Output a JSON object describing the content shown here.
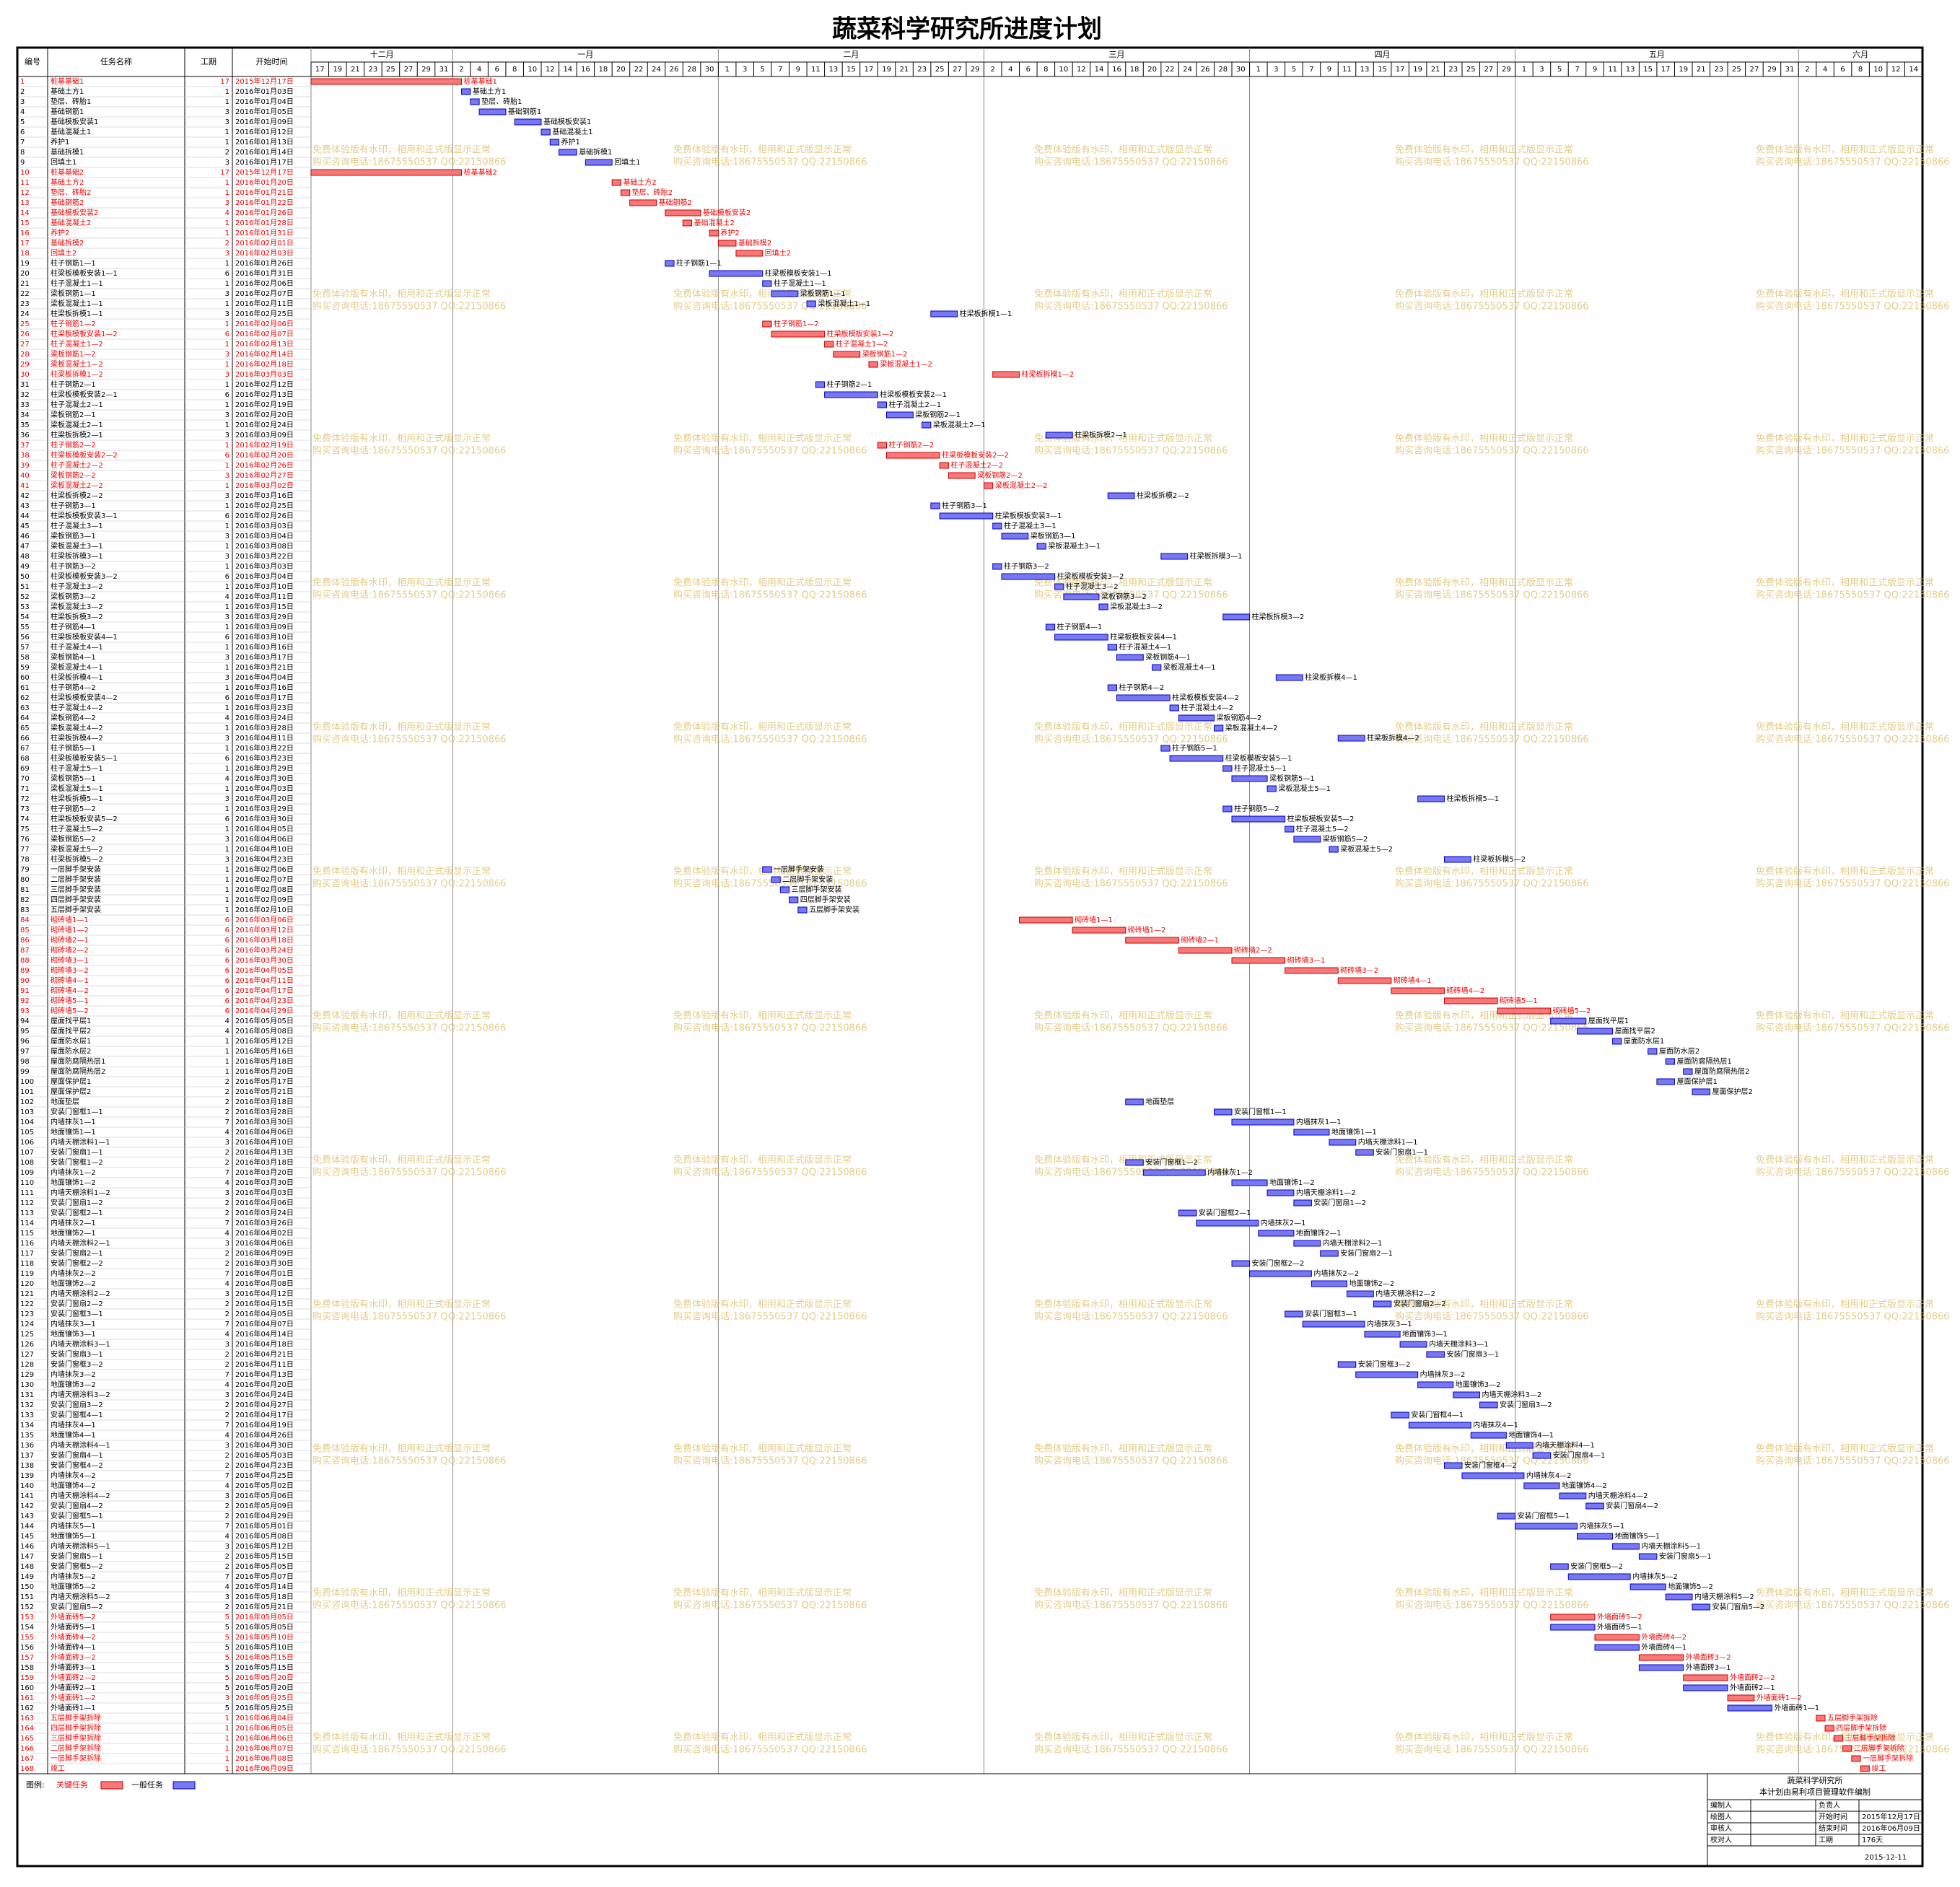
{
  "title": "蔬菜科学研究所进度计划",
  "table": {
    "headers": [
      "编号",
      "任务名称",
      "工期",
      "开始时间"
    ],
    "tasks": [
      [
        1,
        "桩基基础1",
        17,
        "2015年12月17日",
        true
      ],
      [
        2,
        "基础土方1",
        1,
        "2016年01月03日",
        false
      ],
      [
        3,
        "垫层、砖胎1",
        1,
        "2016年01月04日",
        false
      ],
      [
        4,
        "基础钢筋1",
        3,
        "2016年01月05日",
        false
      ],
      [
        5,
        "基础模板安装1",
        3,
        "2016年01月09日",
        false
      ],
      [
        6,
        "基础混凝土1",
        1,
        "2016年01月12日",
        false
      ],
      [
        7,
        "养护1",
        1,
        "2016年01月13日",
        false
      ],
      [
        8,
        "基础拆模1",
        2,
        "2016年01月14日",
        false
      ],
      [
        9,
        "回填土1",
        3,
        "2016年01月17日",
        false
      ],
      [
        10,
        "桩基基础2",
        17,
        "2015年12月17日",
        true
      ],
      [
        11,
        "基础土方2",
        1,
        "2016年01月20日",
        true
      ],
      [
        12,
        "垫层、砖胎2",
        1,
        "2016年01月21日",
        true
      ],
      [
        13,
        "基础钢筋2",
        3,
        "2016年01月22日",
        true
      ],
      [
        14,
        "基础模板安装2",
        4,
        "2016年01月26日",
        true
      ],
      [
        15,
        "基础混凝土2",
        1,
        "2016年01月28日",
        true
      ],
      [
        16,
        "养护2",
        1,
        "2016年01月31日",
        true
      ],
      [
        17,
        "基础拆模2",
        2,
        "2016年02月01日",
        true
      ],
      [
        18,
        "回填土2",
        3,
        "2016年02月03日",
        true
      ],
      [
        19,
        "柱子钢筋1—1",
        1,
        "2016年01月26日",
        false
      ],
      [
        20,
        "柱梁板模板安装1—1",
        6,
        "2016年01月31日",
        false
      ],
      [
        21,
        "柱子混凝土1—1",
        1,
        "2016年02月06日",
        false
      ],
      [
        22,
        "梁板钢筋1—1",
        3,
        "2016年02月07日",
        false
      ],
      [
        23,
        "梁板混凝土1—1",
        1,
        "2016年02月11日",
        false
      ],
      [
        24,
        "柱梁板拆模1—1",
        3,
        "2016年02月25日",
        false
      ],
      [
        25,
        "柱子钢筋1—2",
        1,
        "2016年02月06日",
        true
      ],
      [
        26,
        "柱梁板模板安装1—2",
        6,
        "2016年02月07日",
        true
      ],
      [
        27,
        "柱子混凝土1—2",
        1,
        "2016年02月13日",
        true
      ],
      [
        28,
        "梁板钢筋1—2",
        3,
        "2016年02月14日",
        true
      ],
      [
        29,
        "梁板混凝土1—2",
        1,
        "2016年02月18日",
        true
      ],
      [
        30,
        "柱梁板拆模1—2",
        3,
        "2016年03月03日",
        true
      ],
      [
        31,
        "柱子钢筋2—1",
        1,
        "2016年02月12日",
        false
      ],
      [
        32,
        "柱梁板模板安装2—1",
        6,
        "2016年02月13日",
        false
      ],
      [
        33,
        "柱子混凝土2—1",
        1,
        "2016年02月19日",
        false
      ],
      [
        34,
        "梁板钢筋2—1",
        3,
        "2016年02月20日",
        false
      ],
      [
        35,
        "梁板混凝土2—1",
        1,
        "2016年02月24日",
        false
      ],
      [
        36,
        "柱梁板拆模2—1",
        3,
        "2016年03月09日",
        false
      ],
      [
        37,
        "柱子钢筋2—2",
        1,
        "2016年02月19日",
        true
      ],
      [
        38,
        "柱梁板模板安装2—2",
        6,
        "2016年02月20日",
        true
      ],
      [
        39,
        "柱子混凝土2—2",
        1,
        "2016年02月26日",
        true
      ],
      [
        40,
        "梁板钢筋2—2",
        3,
        "2016年02月27日",
        true
      ],
      [
        41,
        "梁板混凝土2—2",
        1,
        "2016年03月02日",
        true
      ],
      [
        42,
        "柱梁板拆模2—2",
        3,
        "2016年03月16日",
        false
      ],
      [
        43,
        "柱子钢筋3—1",
        1,
        "2016年02月25日",
        false
      ],
      [
        44,
        "柱梁板模板安装3—1",
        6,
        "2016年02月26日",
        false
      ],
      [
        45,
        "柱子混凝土3—1",
        1,
        "2016年03月03日",
        false
      ],
      [
        46,
        "梁板钢筋3—1",
        3,
        "2016年03月04日",
        false
      ],
      [
        47,
        "梁板混凝土3—1",
        1,
        "2016年03月08日",
        false
      ],
      [
        48,
        "柱梁板拆模3—1",
        3,
        "2016年03月22日",
        false
      ],
      [
        49,
        "柱子钢筋3—2",
        1,
        "2016年03月03日",
        false
      ],
      [
        50,
        "柱梁板模板安装3—2",
        6,
        "2016年03月04日",
        false
      ],
      [
        51,
        "柱子混凝土3—2",
        1,
        "2016年03月10日",
        false
      ],
      [
        52,
        "梁板钢筋3—2",
        4,
        "2016年03月11日",
        false
      ],
      [
        53,
        "梁板混凝土3—2",
        1,
        "2016年03月15日",
        false
      ],
      [
        54,
        "柱梁板拆模3—2",
        3,
        "2016年03月29日",
        false
      ],
      [
        55,
        "柱子钢筋4—1",
        1,
        "2016年03月09日",
        false
      ],
      [
        56,
        "柱梁板模板安装4—1",
        6,
        "2016年03月10日",
        false
      ],
      [
        57,
        "柱子混凝土4—1",
        1,
        "2016年03月16日",
        false
      ],
      [
        58,
        "梁板钢筋4—1",
        3,
        "2016年03月17日",
        false
      ],
      [
        59,
        "梁板混凝土4—1",
        1,
        "2016年03月21日",
        false
      ],
      [
        60,
        "柱梁板拆模4—1",
        3,
        "2016年04月04日",
        false
      ],
      [
        61,
        "柱子钢筋4—2",
        1,
        "2016年03月16日",
        false
      ],
      [
        62,
        "柱梁板模板安装4—2",
        6,
        "2016年03月17日",
        false
      ],
      [
        63,
        "柱子混凝土4—2",
        1,
        "2016年03月23日",
        false
      ],
      [
        64,
        "梁板钢筋4—2",
        4,
        "2016年03月24日",
        false
      ],
      [
        65,
        "梁板混凝土4—2",
        1,
        "2016年03月28日",
        false
      ],
      [
        66,
        "柱梁板拆模4—2",
        3,
        "2016年04月11日",
        false
      ],
      [
        67,
        "柱子钢筋5—1",
        1,
        "2016年03月22日",
        false
      ],
      [
        68,
        "柱梁板模板安装5—1",
        6,
        "2016年03月23日",
        false
      ],
      [
        69,
        "柱子混凝土5—1",
        1,
        "2016年03月29日",
        false
      ],
      [
        70,
        "梁板钢筋5—1",
        4,
        "2016年03月30日",
        false
      ],
      [
        71,
        "梁板混凝土5—1",
        1,
        "2016年04月03日",
        false
      ],
      [
        72,
        "柱梁板拆模5—1",
        3,
        "2016年04月20日",
        false
      ],
      [
        73,
        "柱子钢筋5—2",
        1,
        "2016年03月29日",
        false
      ],
      [
        74,
        "柱梁板模板安装5—2",
        6,
        "2016年03月30日",
        false
      ],
      [
        75,
        "柱子混凝土5—2",
        1,
        "2016年04月05日",
        false
      ],
      [
        76,
        "梁板钢筋5—2",
        3,
        "2016年04月06日",
        false
      ],
      [
        77,
        "梁板混凝土5—2",
        1,
        "2016年04月10日",
        false
      ],
      [
        78,
        "柱梁板拆模5—2",
        3,
        "2016年04月23日",
        false
      ],
      [
        79,
        "一层脚手架安装",
        1,
        "2016年02月06日",
        false
      ],
      [
        80,
        "二层脚手架安装",
        1,
        "2016年02月07日",
        false
      ],
      [
        81,
        "三层脚手架安装",
        1,
        "2016年02月08日",
        false
      ],
      [
        82,
        "四层脚手架安装",
        1,
        "2016年02月09日",
        false
      ],
      [
        83,
        "五层脚手架安装",
        1,
        "2016年02月10日",
        false
      ],
      [
        84,
        "砌砖墙1—1",
        6,
        "2016年03月06日",
        true
      ],
      [
        85,
        "砌砖墙1—2",
        6,
        "2016年03月12日",
        true
      ],
      [
        86,
        "砌砖墙2—1",
        6,
        "2016年03月18日",
        true
      ],
      [
        87,
        "砌砖墙2—2",
        6,
        "2016年03月24日",
        true
      ],
      [
        88,
        "砌砖墙3—1",
        6,
        "2016年03月30日",
        true
      ],
      [
        89,
        "砌砖墙3—2",
        6,
        "2016年04月05日",
        true
      ],
      [
        90,
        "砌砖墙4—1",
        6,
        "2016年04月11日",
        true
      ],
      [
        91,
        "砌砖墙4—2",
        6,
        "2016年04月17日",
        true
      ],
      [
        92,
        "砌砖墙5—1",
        6,
        "2016年04月23日",
        true
      ],
      [
        93,
        "砌砖墙5—2",
        6,
        "2016年04月29日",
        true
      ],
      [
        94,
        "屋面找平层1",
        4,
        "2016年05月05日",
        false
      ],
      [
        95,
        "屋面找平层2",
        4,
        "2016年05月08日",
        false
      ],
      [
        96,
        "屋面防水层1",
        1,
        "2016年05月12日",
        false
      ],
      [
        97,
        "屋面防水层2",
        1,
        "2016年05月16日",
        false
      ],
      [
        98,
        "屋面防腐隔热层1",
        1,
        "2016年05月18日",
        false
      ],
      [
        99,
        "屋面防腐隔热层2",
        1,
        "2016年05月20日",
        false
      ],
      [
        100,
        "屋面保护层1",
        2,
        "2016年05月17日",
        false
      ],
      [
        101,
        "屋面保护层2",
        2,
        "2016年05月21日",
        false
      ],
      [
        102,
        "地面垫层",
        2,
        "2016年03月18日",
        false
      ],
      [
        103,
        "安装门窗框1—1",
        2,
        "2016年03月28日",
        false
      ],
      [
        104,
        "内墙抹灰1—1",
        7,
        "2016年03月30日",
        false
      ],
      [
        105,
        "地面镶饰1—1",
        4,
        "2016年04月06日",
        false
      ],
      [
        106,
        "内墙天棚涂料1—1",
        3,
        "2016年04月10日",
        false
      ],
      [
        107,
        "安装门窗扇1—1",
        2,
        "2016年04月13日",
        false
      ],
      [
        108,
        "安装门窗框1—2",
        2,
        "2016年03月18日",
        false
      ],
      [
        109,
        "内墙抹灰1—2",
        7,
        "2016年03月20日",
        false
      ],
      [
        110,
        "地面镶饰1—2",
        4,
        "2016年03月30日",
        false
      ],
      [
        111,
        "内墙天棚涂料1—2",
        3,
        "2016年04月03日",
        false
      ],
      [
        112,
        "安装门窗扇1—2",
        2,
        "2016年04月06日",
        false
      ],
      [
        113,
        "安装门窗框2—1",
        2,
        "2016年03月24日",
        false
      ],
      [
        114,
        "内墙抹灰2—1",
        7,
        "2016年03月26日",
        false
      ],
      [
        115,
        "地面镶饰2—1",
        4,
        "2016年04月02日",
        false
      ],
      [
        116,
        "内墙天棚涂料2—1",
        3,
        "2016年04月06日",
        false
      ],
      [
        117,
        "安装门窗扇2—1",
        2,
        "2016年04月09日",
        false
      ],
      [
        118,
        "安装门窗框2—2",
        2,
        "2016年03月30日",
        false
      ],
      [
        119,
        "内墙抹灰2—2",
        7,
        "2016年04月01日",
        false
      ],
      [
        120,
        "地面镶饰2—2",
        4,
        "2016年04月08日",
        false
      ],
      [
        121,
        "内墙天棚涂料2—2",
        3,
        "2016年04月12日",
        false
      ],
      [
        122,
        "安装门窗扇2—2",
        2,
        "2016年04月15日",
        false
      ],
      [
        123,
        "安装门窗框3—1",
        2,
        "2016年04月05日",
        false
      ],
      [
        124,
        "内墙抹灰3—1",
        7,
        "2016年04月07日",
        false
      ],
      [
        125,
        "地面镶饰3—1",
        4,
        "2016年04月14日",
        false
      ],
      [
        126,
        "内墙天棚涂料3—1",
        3,
        "2016年04月18日",
        false
      ],
      [
        127,
        "安装门窗扇3—1",
        2,
        "2016年04月21日",
        false
      ],
      [
        128,
        "安装门窗框3—2",
        2,
        "2016年04月11日",
        false
      ],
      [
        129,
        "内墙抹灰3—2",
        7,
        "2016年04月13日",
        false
      ],
      [
        130,
        "地面镶饰3—2",
        4,
        "2016年04月20日",
        false
      ],
      [
        131,
        "内墙天棚涂料3—2",
        3,
        "2016年04月24日",
        false
      ],
      [
        132,
        "安装门窗扇3—2",
        2,
        "2016年04月27日",
        false
      ],
      [
        133,
        "安装门窗框4—1",
        2,
        "2016年04月17日",
        false
      ],
      [
        134,
        "内墙抹灰4—1",
        7,
        "2016年04月19日",
        false
      ],
      [
        135,
        "地面镶饰4—1",
        4,
        "2016年04月26日",
        false
      ],
      [
        136,
        "内墙天棚涂料4—1",
        3,
        "2016年04月30日",
        false
      ],
      [
        137,
        "安装门窗扇4—1",
        2,
        "2016年05月03日",
        false
      ],
      [
        138,
        "安装门窗框4—2",
        2,
        "2016年04月23日",
        false
      ],
      [
        139,
        "内墙抹灰4—2",
        7,
        "2016年04月25日",
        false
      ],
      [
        140,
        "地面镶饰4—2",
        4,
        "2016年05月02日",
        false
      ],
      [
        141,
        "内墙天棚涂料4—2",
        3,
        "2016年05月06日",
        false
      ],
      [
        142,
        "安装门窗扇4—2",
        2,
        "2016年05月09日",
        false
      ],
      [
        143,
        "安装门窗框5—1",
        2,
        "2016年04月29日",
        false
      ],
      [
        144,
        "内墙抹灰5—1",
        7,
        "2016年05月01日",
        false
      ],
      [
        145,
        "地面镶饰5—1",
        4,
        "2016年05月08日",
        false
      ],
      [
        146,
        "内墙天棚涂料5—1",
        3,
        "2016年05月12日",
        false
      ],
      [
        147,
        "安装门窗扇5—1",
        2,
        "2016年05月15日",
        false
      ],
      [
        148,
        "安装门窗框5—2",
        2,
        "2016年05月05日",
        false
      ],
      [
        149,
        "内墙抹灰5—2",
        7,
        "2016年05月07日",
        false
      ],
      [
        150,
        "地面镶饰5—2",
        4,
        "2016年05月14日",
        false
      ],
      [
        151,
        "内墙天棚涂料5—2",
        3,
        "2016年05月18日",
        false
      ],
      [
        152,
        "安装门窗扇5—2",
        2,
        "2016年05月21日",
        false
      ],
      [
        153,
        "外墙面砖5—2",
        5,
        "2016年05月05日",
        true
      ],
      [
        154,
        "外墙面砖5—1",
        5,
        "2016年05月05日",
        false
      ],
      [
        155,
        "外墙面砖4—2",
        5,
        "2016年05月10日",
        true
      ],
      [
        156,
        "外墙面砖4—1",
        5,
        "2016年05月10日",
        false
      ],
      [
        157,
        "外墙面砖3—2",
        5,
        "2016年05月15日",
        true
      ],
      [
        158,
        "外墙面砖3—1",
        5,
        "2016年05月15日",
        false
      ],
      [
        159,
        "外墙面砖2—2",
        5,
        "2016年05月20日",
        true
      ],
      [
        160,
        "外墙面砖2—1",
        5,
        "2016年05月20日",
        false
      ],
      [
        161,
        "外墙面砖1—2",
        3,
        "2016年05月25日",
        true
      ],
      [
        162,
        "外墙面砖1—1",
        5,
        "2016年05月25日",
        false
      ],
      [
        163,
        "五层脚手架拆除",
        1,
        "2016年06月04日",
        true
      ],
      [
        164,
        "四层脚手架拆除",
        1,
        "2016年06月05日",
        true
      ],
      [
        165,
        "三层脚手架拆除",
        1,
        "2016年06月06日",
        true
      ],
      [
        166,
        "二层脚手架拆除",
        1,
        "2016年06月07日",
        true
      ],
      [
        167,
        "一层脚手架拆除",
        1,
        "2016年06月08日",
        true
      ],
      [
        168,
        "竣工",
        1,
        "2016年06月09日",
        true
      ]
    ]
  },
  "timeline": {
    "months": [
      {
        "name": "十二月",
        "days": [
          17,
          19,
          21,
          23,
          25,
          27,
          29,
          31
        ]
      },
      {
        "name": "一月",
        "days": [
          2,
          4,
          6,
          8,
          10,
          12,
          14,
          16,
          18,
          20,
          22,
          24,
          26,
          28,
          30
        ]
      },
      {
        "name": "二月",
        "days": [
          1,
          3,
          5,
          7,
          9,
          11,
          13,
          15,
          17,
          19,
          21,
          23,
          25,
          27,
          29
        ]
      },
      {
        "name": "三月",
        "days": [
          2,
          4,
          6,
          8,
          10,
          12,
          14,
          16,
          18,
          20,
          22,
          24,
          26,
          28,
          30
        ]
      },
      {
        "name": "四月",
        "days": [
          1,
          3,
          5,
          7,
          9,
          11,
          13,
          15,
          17,
          19,
          21,
          23,
          25,
          27,
          29
        ]
      },
      {
        "name": "五月",
        "days": [
          1,
          3,
          5,
          7,
          9,
          11,
          13,
          15,
          17,
          19,
          21,
          23,
          25,
          27,
          29,
          31
        ]
      },
      {
        "name": "六月",
        "days": [
          2,
          4,
          6,
          8,
          10,
          12,
          14
        ]
      }
    ]
  },
  "legend": {
    "label": "图例:",
    "critical": {
      "name": "关键任务",
      "color": "#f87878"
    },
    "normal": {
      "name": "一般任务",
      "color": "#7878f0"
    }
  },
  "watermark": [
    "免费体验版有水印，相用和正式版显示正常",
    "购买咨询电话:18675550537 QQ:22150866"
  ],
  "footer": {
    "org": "蔬菜科学研究所",
    "note": "本计划由易利项目管理软件编制",
    "rows": [
      [
        "编制人",
        "负责人"
      ],
      [
        "绘图人",
        "开始时间",
        "2015年12月17日"
      ],
      [
        "审核人",
        "结束时间",
        "2016年06月09日"
      ],
      [
        "校对人",
        "工期",
        "176天"
      ]
    ],
    "date": "2015-12-11"
  }
}
